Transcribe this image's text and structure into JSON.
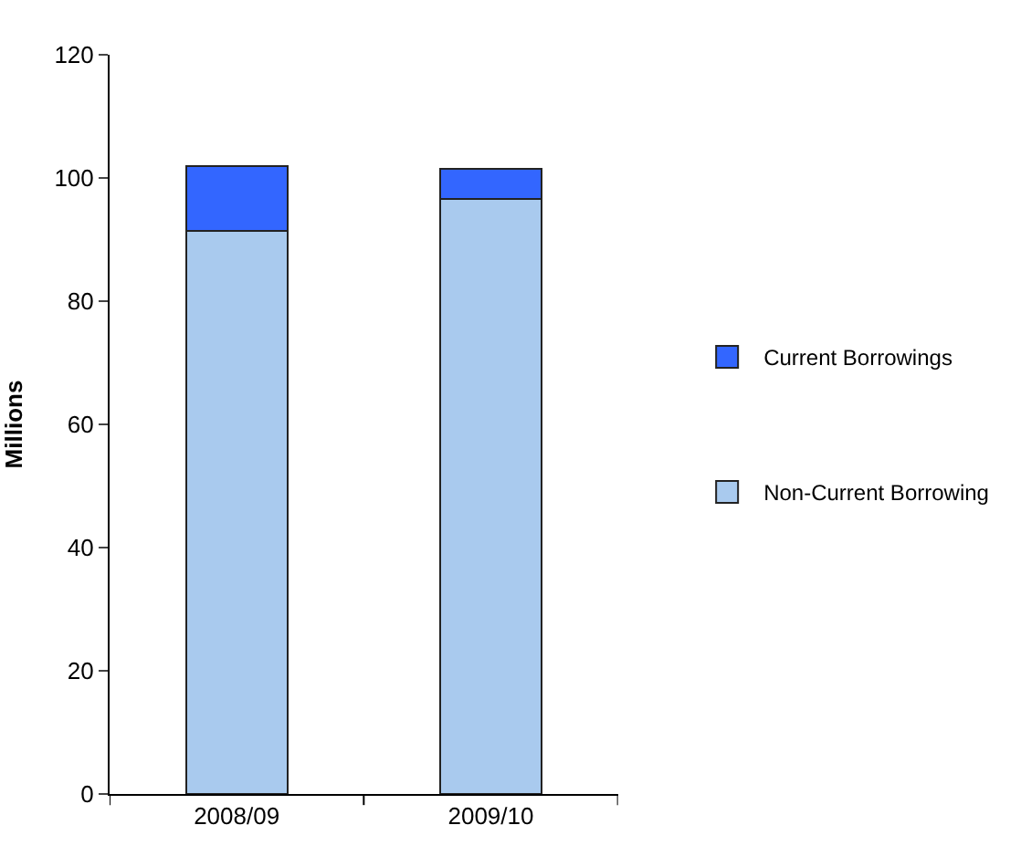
{
  "chart_data": {
    "type": "bar",
    "stacked": true,
    "ylabel": "Millions",
    "categories": [
      "2008/09",
      "2009/10"
    ],
    "series": [
      {
        "name": "Non-Current Borrowing",
        "color": "#a9caee",
        "values": [
          91.4,
          96.6
        ]
      },
      {
        "name": "Current Borrowings",
        "color": "#3366ff",
        "values": [
          10.5,
          4.9
        ]
      }
    ],
    "ylim": [
      0,
      120
    ],
    "yticks": [
      0,
      20,
      40,
      60,
      80,
      100,
      120
    ],
    "legend": "right"
  }
}
